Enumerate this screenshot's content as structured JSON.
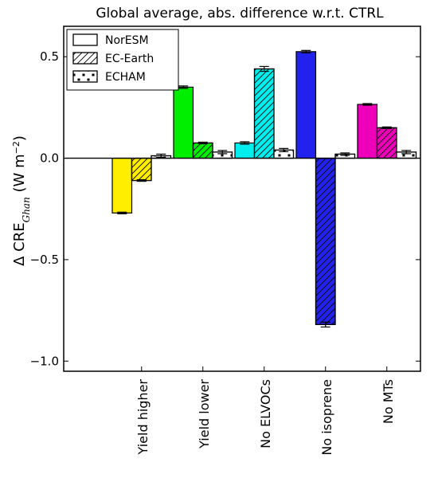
{
  "chart_data": {
    "type": "bar",
    "title": "Global average, abs. difference w.r.t. CTRL",
    "ylabel": "Δ CRE",
    "ylabel_subscript": "Ghan",
    "ylabel_unit_open": " (W m",
    "ylabel_unit_exp": "−2",
    "ylabel_unit_close": ")",
    "ylim": [
      -1.05,
      0.65
    ],
    "yticks": [
      0.5,
      0.0,
      -0.5,
      -1.0
    ],
    "ytick_labels": [
      "0.5",
      "0.0",
      "−0.5",
      "−1.0"
    ],
    "grid": false,
    "legend_position": "top-left",
    "categories": [
      "Yield higher",
      "Yield lower",
      "No ELVOCs",
      "No isoprene",
      "No MTs"
    ],
    "category_colors": [
      "#ffee00",
      "#00ee00",
      "#00eeee",
      "#2222ee",
      "#ee00bb"
    ],
    "series": [
      {
        "name": "NorESM",
        "hatch": "none",
        "values": [
          -0.27,
          0.35,
          0.075,
          0.525,
          0.265
        ],
        "errors": [
          0.004,
          0.006,
          0.006,
          0.006,
          0.004
        ]
      },
      {
        "name": "EC-Earth",
        "hatch": "diagonal",
        "values": [
          -0.11,
          0.075,
          0.44,
          -0.82,
          0.15
        ],
        "errors": [
          0.004,
          0.004,
          0.012,
          0.012,
          0.004
        ]
      },
      {
        "name": "ECHAM",
        "hatch": "stars",
        "values": [
          0.012,
          0.03,
          0.04,
          0.02,
          0.03
        ],
        "errors": [
          0.008,
          0.008,
          0.008,
          0.006,
          0.008
        ]
      }
    ]
  }
}
